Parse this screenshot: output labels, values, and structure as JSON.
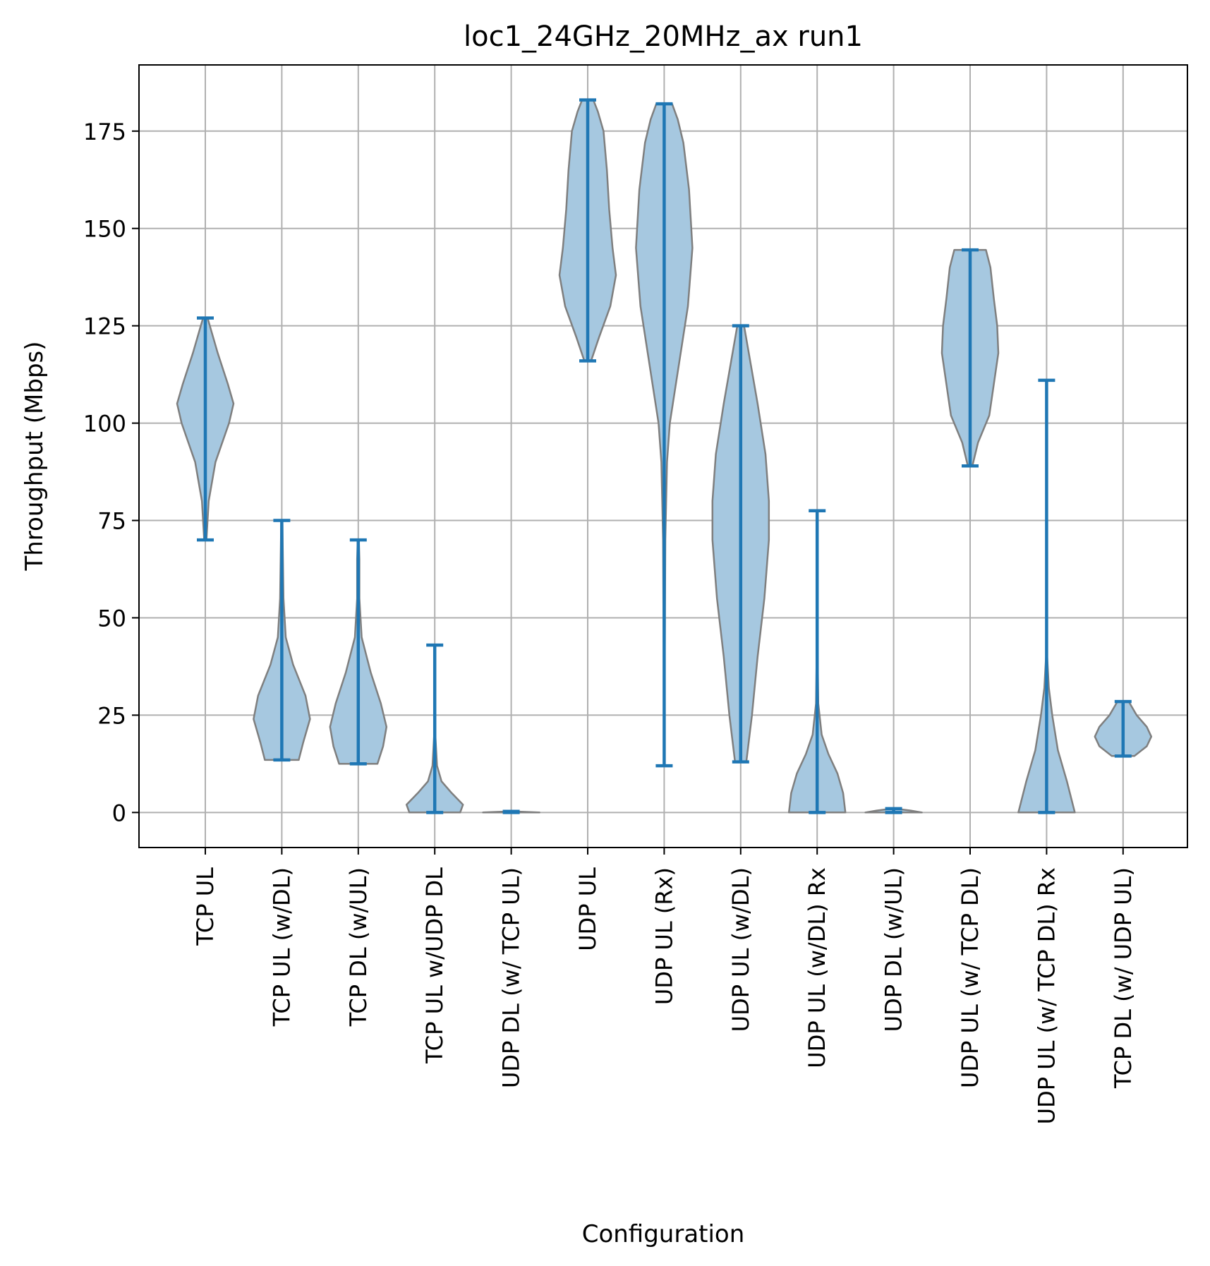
{
  "chart_data": {
    "type": "violin",
    "title": "loc1_24GHz_20MHz_ax run1",
    "xlabel": "Configuration",
    "ylabel": "Throughput (Mbps)",
    "ylim": [
      -9,
      192
    ],
    "yticks": [
      0,
      25,
      50,
      75,
      100,
      125,
      150,
      175
    ],
    "grid": true,
    "colors": {
      "body_fill": "#a6c8e0",
      "body_edge": "#7f7f7f",
      "whisker": "#1f77b4",
      "grid": "#b0b0b0"
    },
    "categories": [
      "TCP  UL",
      "TCP UL (w/DL)",
      "TCP DL (w/UL)",
      "TCP  UL w/UDP DL",
      "UDP DL (w/ TCP UL)",
      "UDP  UL",
      "UDP  UL (Rx)",
      "UDP UL (w/DL)",
      "UDP UL (w/DL) Rx",
      "UDP DL (w/UL)",
      "UDP UL (w/ TCP DL)",
      "UDP UL (w/ TCP DL) Rx",
      "TCP DL (w/ UDP UL)"
    ],
    "series": [
      {
        "min": 70,
        "max": 127,
        "profile": [
          [
            70,
            0.02
          ],
          [
            80,
            0.06
          ],
          [
            90,
            0.18
          ],
          [
            100,
            0.42
          ],
          [
            105,
            0.5
          ],
          [
            110,
            0.4
          ],
          [
            118,
            0.22
          ],
          [
            124,
            0.1
          ],
          [
            127,
            0.04
          ]
        ]
      },
      {
        "min": 13.5,
        "max": 75,
        "profile": [
          [
            13.5,
            0.3
          ],
          [
            18,
            0.38
          ],
          [
            24,
            0.5
          ],
          [
            30,
            0.42
          ],
          [
            38,
            0.2
          ],
          [
            45,
            0.07
          ],
          [
            55,
            0.03
          ],
          [
            65,
            0.02
          ],
          [
            75,
            0.01
          ]
        ]
      },
      {
        "min": 12.5,
        "max": 70,
        "profile": [
          [
            12.5,
            0.34
          ],
          [
            17,
            0.44
          ],
          [
            22,
            0.5
          ],
          [
            28,
            0.4
          ],
          [
            36,
            0.22
          ],
          [
            45,
            0.06
          ],
          [
            55,
            0.02
          ],
          [
            65,
            0.02
          ],
          [
            70,
            0.01
          ]
        ]
      },
      {
        "min": 0,
        "max": 43,
        "profile": [
          [
            0,
            0.45
          ],
          [
            2,
            0.5
          ],
          [
            5,
            0.3
          ],
          [
            8,
            0.12
          ],
          [
            12,
            0.04
          ],
          [
            20,
            0.01
          ],
          [
            30,
            0.005
          ],
          [
            43,
            0.003
          ]
        ]
      },
      {
        "min": 0,
        "max": 0.3,
        "profile": [
          [
            0,
            0.5
          ],
          [
            0.3,
            0.01
          ]
        ]
      },
      {
        "min": 116,
        "max": 183,
        "profile": [
          [
            116,
            0.06
          ],
          [
            122,
            0.2
          ],
          [
            130,
            0.4
          ],
          [
            138,
            0.5
          ],
          [
            145,
            0.44
          ],
          [
            155,
            0.38
          ],
          [
            165,
            0.34
          ],
          [
            175,
            0.28
          ],
          [
            180,
            0.18
          ],
          [
            183,
            0.1
          ]
        ]
      },
      {
        "min": 12,
        "max": 182,
        "profile": [
          [
            12,
            0.005
          ],
          [
            40,
            0.01
          ],
          [
            70,
            0.02
          ],
          [
            90,
            0.05
          ],
          [
            100,
            0.1
          ],
          [
            115,
            0.26
          ],
          [
            130,
            0.42
          ],
          [
            145,
            0.5
          ],
          [
            160,
            0.44
          ],
          [
            172,
            0.34
          ],
          [
            178,
            0.24
          ],
          [
            182,
            0.14
          ]
        ]
      },
      {
        "min": 13,
        "max": 125,
        "profile": [
          [
            13,
            0.1
          ],
          [
            25,
            0.2
          ],
          [
            40,
            0.3
          ],
          [
            55,
            0.42
          ],
          [
            70,
            0.5
          ],
          [
            80,
            0.5
          ],
          [
            92,
            0.44
          ],
          [
            105,
            0.3
          ],
          [
            115,
            0.18
          ],
          [
            125,
            0.06
          ]
        ]
      },
      {
        "min": 0,
        "max": 77.5,
        "profile": [
          [
            0,
            0.5
          ],
          [
            5,
            0.46
          ],
          [
            10,
            0.36
          ],
          [
            15,
            0.2
          ],
          [
            20,
            0.08
          ],
          [
            28,
            0.02
          ],
          [
            45,
            0.005
          ],
          [
            77.5,
            0.002
          ]
        ]
      },
      {
        "min": 0,
        "max": 1,
        "profile": [
          [
            0,
            0.5
          ],
          [
            0.5,
            0.3
          ],
          [
            1,
            0.02
          ]
        ]
      },
      {
        "min": 89,
        "max": 144.5,
        "profile": [
          [
            89,
            0.04
          ],
          [
            95,
            0.14
          ],
          [
            102,
            0.34
          ],
          [
            110,
            0.42
          ],
          [
            118,
            0.5
          ],
          [
            125,
            0.48
          ],
          [
            132,
            0.42
          ],
          [
            140,
            0.36
          ],
          [
            144.5,
            0.28
          ]
        ]
      },
      {
        "min": 0,
        "max": 111,
        "profile": [
          [
            0,
            0.5
          ],
          [
            8,
            0.36
          ],
          [
            16,
            0.2
          ],
          [
            25,
            0.1
          ],
          [
            32,
            0.04
          ],
          [
            40,
            0.01
          ],
          [
            60,
            0.005
          ],
          [
            111,
            0.003
          ]
        ]
      },
      {
        "min": 14.5,
        "max": 28.5,
        "profile": [
          [
            14.5,
            0.2
          ],
          [
            17,
            0.42
          ],
          [
            19.5,
            0.5
          ],
          [
            22,
            0.42
          ],
          [
            25,
            0.24
          ],
          [
            28.5,
            0.1
          ]
        ]
      }
    ]
  }
}
